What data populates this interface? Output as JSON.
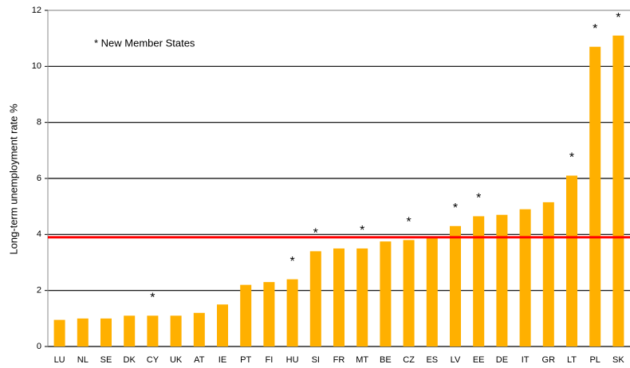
{
  "chart_data": {
    "type": "bar",
    "y_label": "Long-term unemployment rate %",
    "annotation": "* New Member States",
    "categories": [
      "LU",
      "NL",
      "SE",
      "DK",
      "CY",
      "UK",
      "AT",
      "IE",
      "PT",
      "FI",
      "HU",
      "SI",
      "FR",
      "MT",
      "BE",
      "CZ",
      "ES",
      "LV",
      "EE",
      "DE",
      "IT",
      "GR",
      "LT",
      "PL",
      "SK"
    ],
    "values": [
      0.95,
      1.0,
      1.0,
      1.1,
      1.1,
      1.1,
      1.2,
      1.5,
      2.2,
      2.3,
      2.4,
      3.4,
      3.5,
      3.5,
      3.75,
      3.8,
      3.9,
      4.3,
      4.65,
      4.7,
      4.9,
      5.15,
      6.1,
      10.7,
      11.1
    ],
    "markers": [
      null,
      null,
      null,
      null,
      "*",
      null,
      null,
      null,
      null,
      null,
      "*",
      "*",
      null,
      "*",
      null,
      "*",
      null,
      "*",
      "*",
      null,
      null,
      null,
      "*",
      "*",
      "*"
    ],
    "color": "#ffb000",
    "reference_line": 3.9,
    "reference_color": "#ff0000",
    "ylim": [
      0,
      12
    ],
    "yticks": [
      0,
      2,
      4,
      6,
      8,
      10,
      12
    ],
    "grid": true
  }
}
